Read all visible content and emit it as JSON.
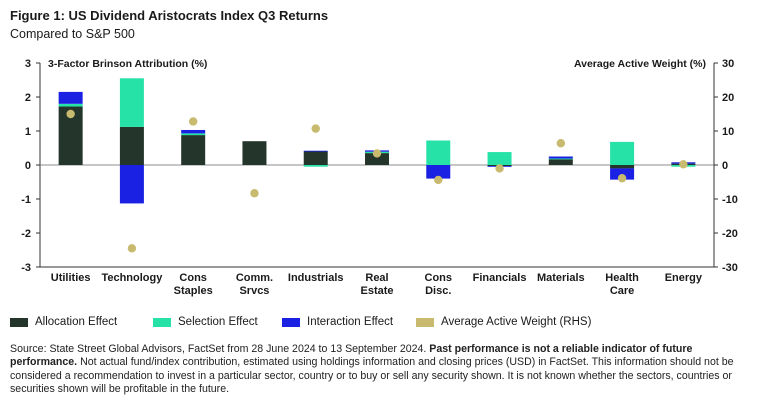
{
  "figure": {
    "title": "Figure 1: US Dividend Aristocrats Index Q3 Returns",
    "subtitle": "Compared to S&P 500"
  },
  "chart_data": {
    "type": "bar",
    "stacked": true,
    "left_axis_label": "3-Factor Brinson Attribution (%)",
    "right_axis_label": "Average Active Weight (%)",
    "ylim": [
      -3,
      3
    ],
    "y2lim": [
      -30,
      30
    ],
    "y_ticks": [
      "3",
      "2",
      "1",
      "0",
      "-1",
      "-2",
      "-3"
    ],
    "y2_ticks": [
      "30",
      "20",
      "10",
      "0",
      "-10",
      "-20",
      "-30"
    ],
    "categories": [
      [
        "Utilities"
      ],
      [
        "Technology"
      ],
      [
        "Cons",
        "Staples"
      ],
      [
        "Comm.",
        "Srvcs"
      ],
      [
        "Industrials"
      ],
      [
        "Real",
        "Estate"
      ],
      [
        "Cons",
        "Disc."
      ],
      [
        "Financials"
      ],
      [
        "Materials"
      ],
      [
        "Health",
        "Care"
      ],
      [
        "Energy"
      ]
    ],
    "series": [
      {
        "name": "Allocation Effect",
        "color": "#24352c",
        "values": [
          1.72,
          1.12,
          0.88,
          0.7,
          0.4,
          0.35,
          0.0,
          -0.03,
          0.17,
          -0.1,
          0.04
        ]
      },
      {
        "name": "Selection Effect",
        "color": "#26e2a7",
        "values": [
          0.08,
          1.43,
          0.05,
          0.0,
          -0.05,
          0.04,
          0.72,
          0.38,
          0.02,
          0.68,
          -0.05
        ]
      },
      {
        "name": "Interaction Effect",
        "color": "#1a21e3",
        "values": [
          0.35,
          -1.13,
          0.1,
          0.0,
          0.02,
          0.04,
          -0.4,
          -0.02,
          0.06,
          -0.33,
          0.04
        ]
      }
    ],
    "scatter_series": {
      "name": "Average Active Weight (RHS)",
      "color": "#c8ba6e",
      "values": [
        15,
        -24.5,
        12.8,
        -8.3,
        10.7,
        3.4,
        -4.4,
        -1.0,
        6.4,
        -3.9,
        0.2
      ]
    }
  },
  "legend": {
    "allocation": "Allocation Effect",
    "selection": "Selection Effect",
    "interaction": "Interaction Effect",
    "weight": "Average Active Weight (RHS)"
  },
  "source": {
    "part1": "Source: State Street Global Advisors, FactSet from 28 June 2024 to 13 September 2024. ",
    "bold": "Past performance is not a reliable indicator of future performance.",
    "part2": " Not actual fund/index contribution, estimated using holdings information and closing prices (USD) in FactSet. This information should not be considered a recommendation to invest in a particular sector, country or to buy or sell any security shown. It is not known whether the sectors, countries or securities shown will be profitable in the future."
  }
}
